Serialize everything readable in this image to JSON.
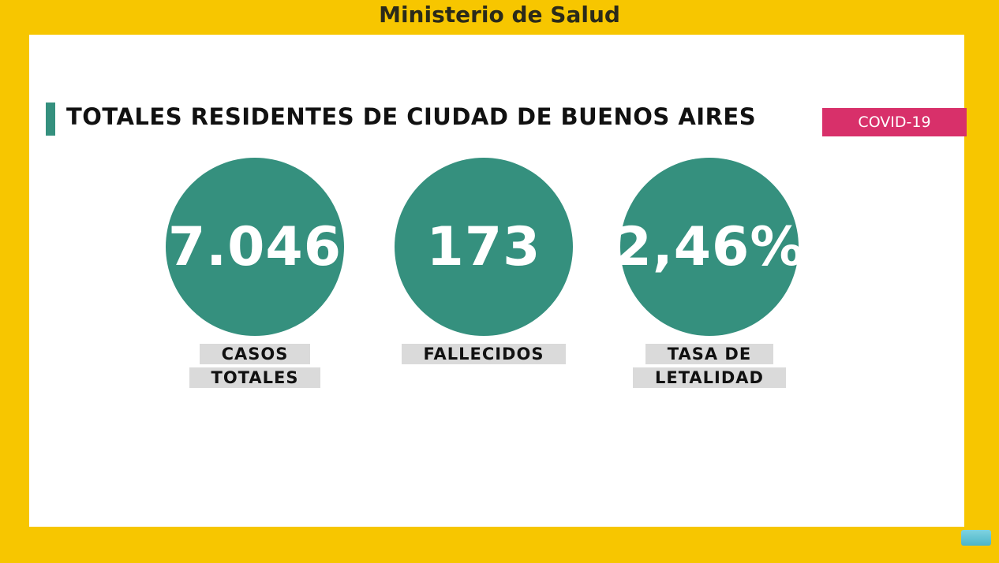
{
  "header": {
    "title": "Ministerio de Salud"
  },
  "section": {
    "title": "TOTALES RESIDENTES DE CIUDAD DE BUENOS AIRES",
    "badge": "COVID-19"
  },
  "stats": [
    {
      "value": "7.046",
      "label": [
        "CASOS",
        "TOTALES"
      ]
    },
    {
      "value": "173",
      "label": [
        "FALLECIDOS"
      ]
    },
    {
      "value": "2,46%",
      "label": [
        "TASA DE",
        "LETALIDAD"
      ]
    }
  ]
}
